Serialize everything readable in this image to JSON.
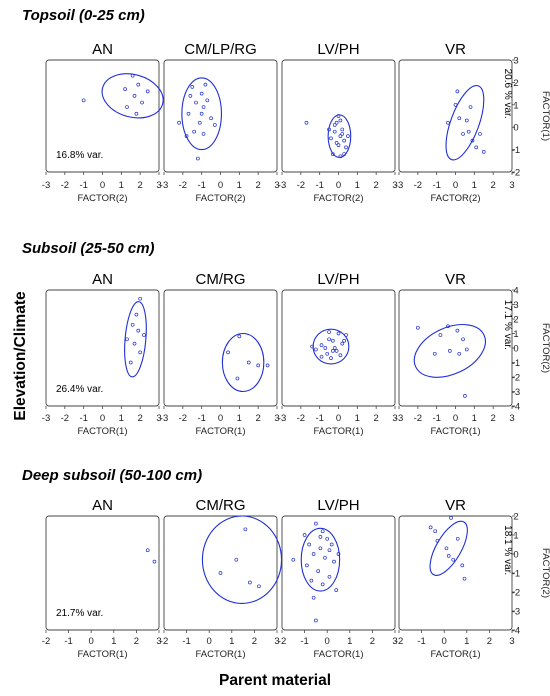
{
  "figure": {
    "y_axis_title": "Elevation/Climate",
    "x_axis_title": "Parent material"
  },
  "chart_data": [
    {
      "type": "scatter",
      "title": "Topsoil (0-25 cm)",
      "xlabel": "FACTOR(2)",
      "ylabel": "FACTOR(1)",
      "xlim": [
        -3,
        3
      ],
      "ylim": [
        -2,
        3
      ],
      "xticks": [
        -3,
        -2,
        -1,
        0,
        1,
        2,
        3
      ],
      "yticks": [
        -2,
        -1,
        0,
        1,
        2,
        3
      ],
      "explained_variance_x": "16.8% var.",
      "explained_variance_y": "20.6 % var.",
      "panels": [
        {
          "label": "AN",
          "points": [
            [
              -1.0,
              1.2
            ],
            [
              1.2,
              1.7
            ],
            [
              1.6,
              2.3
            ],
            [
              1.9,
              1.9
            ],
            [
              2.1,
              1.1
            ],
            [
              1.8,
              0.6
            ],
            [
              2.4,
              1.6
            ],
            [
              1.3,
              0.9
            ],
            [
              1.7,
              1.4
            ]
          ],
          "ellipse": {
            "cx": 1.6,
            "cy": 1.4,
            "rx": 1.65,
            "ry": 0.95,
            "angle_deg": 15
          }
        },
        {
          "label": "CM/LP/RG",
          "points": [
            [
              -1.5,
              1.8
            ],
            [
              -1.0,
              1.5
            ],
            [
              -0.8,
              1.9
            ],
            [
              -1.3,
              1.1
            ],
            [
              -0.9,
              0.9
            ],
            [
              -1.7,
              0.6
            ],
            [
              -1.1,
              0.2
            ],
            [
              -0.5,
              0.4
            ],
            [
              -1.4,
              -0.2
            ],
            [
              -0.9,
              -0.3
            ],
            [
              -2.2,
              0.2
            ],
            [
              -1.2,
              -1.4
            ],
            [
              -0.7,
              1.2
            ],
            [
              -1.6,
              1.4
            ],
            [
              -1.0,
              0.6
            ],
            [
              -0.3,
              0.1
            ],
            [
              -1.8,
              -0.4
            ]
          ],
          "ellipse": {
            "cx": -1.0,
            "cy": 0.6,
            "rx": 1.05,
            "ry": 1.6,
            "angle_deg": 0
          }
        },
        {
          "label": "LV/PH",
          "points": [
            [
              0.0,
              0.5
            ],
            [
              -0.2,
              -0.2
            ],
            [
              0.1,
              -0.4
            ],
            [
              0.2,
              -0.1
            ],
            [
              -0.1,
              -0.7
            ],
            [
              0.3,
              -0.6
            ],
            [
              -0.3,
              -1.2
            ],
            [
              0.1,
              -1.3
            ],
            [
              0.4,
              -0.9
            ],
            [
              -0.2,
              0.1
            ],
            [
              0.0,
              -0.8
            ],
            [
              0.2,
              -0.3
            ],
            [
              -0.1,
              0.2
            ],
            [
              0.3,
              -1.2
            ],
            [
              -0.4,
              -0.5
            ],
            [
              0.1,
              0.3
            ],
            [
              0.5,
              -0.4
            ],
            [
              -1.7,
              0.2
            ],
            [
              -0.5,
              -0.1
            ]
          ],
          "ellipse": {
            "cx": 0.05,
            "cy": -0.4,
            "rx": 0.6,
            "ry": 0.95,
            "angle_deg": 0
          }
        },
        {
          "label": "VR",
          "points": [
            [
              0.1,
              1.6
            ],
            [
              0.0,
              1.0
            ],
            [
              0.2,
              0.4
            ],
            [
              0.6,
              0.3
            ],
            [
              0.4,
              -0.3
            ],
            [
              0.9,
              -0.6
            ],
            [
              1.1,
              -0.9
            ],
            [
              1.3,
              -0.3
            ],
            [
              0.8,
              0.9
            ],
            [
              1.5,
              -1.1
            ],
            [
              -0.4,
              0.2
            ],
            [
              0.7,
              -0.2
            ]
          ],
          "ellipse": {
            "cx": 0.5,
            "cy": 0.2,
            "rx": 0.75,
            "ry": 1.75,
            "angle_deg": 20
          }
        }
      ]
    },
    {
      "type": "scatter",
      "title": "Subsoil (25-50 cm)",
      "xlabel": "FACTOR(1)",
      "ylabel": "FACTOR(2)",
      "xlim": [
        -3,
        3
      ],
      "ylim": [
        -4,
        4
      ],
      "xticks": [
        -3,
        -2,
        -1,
        0,
        1,
        2,
        3
      ],
      "yticks": [
        -4,
        -3,
        -2,
        -1,
        0,
        1,
        2,
        3,
        4
      ],
      "explained_variance_x": "26.4% var.",
      "explained_variance_y": "17.1 % var.",
      "panels": [
        {
          "label": "AN",
          "points": [
            [
              2.0,
              3.4
            ],
            [
              1.8,
              2.3
            ],
            [
              1.6,
              1.6
            ],
            [
              1.9,
              1.2
            ],
            [
              1.3,
              0.6
            ],
            [
              1.7,
              0.3
            ],
            [
              2.0,
              -0.3
            ],
            [
              1.5,
              -1.0
            ],
            [
              2.2,
              0.9
            ]
          ],
          "ellipse": {
            "cx": 1.75,
            "cy": 0.6,
            "rx": 0.55,
            "ry": 2.6,
            "angle_deg": 5
          }
        },
        {
          "label": "CM/RG",
          "points": [
            [
              0.4,
              -0.3
            ],
            [
              1.0,
              0.8
            ],
            [
              1.5,
              -1.0
            ],
            [
              2.0,
              -1.2
            ],
            [
              2.5,
              -1.2
            ],
            [
              0.9,
              -2.1
            ]
          ],
          "ellipse": {
            "cx": 1.2,
            "cy": -1.0,
            "rx": 1.1,
            "ry": 2.0,
            "angle_deg": 0
          }
        },
        {
          "label": "LV/PH",
          "points": [
            [
              -0.9,
              0.2
            ],
            [
              -0.5,
              0.6
            ],
            [
              -0.3,
              0.5
            ],
            [
              -0.1,
              -0.2
            ],
            [
              -0.6,
              -0.4
            ],
            [
              -0.2,
              0.0
            ],
            [
              0.2,
              0.3
            ],
            [
              -1.2,
              -0.1
            ],
            [
              -0.7,
              0.0
            ],
            [
              -0.4,
              -0.7
            ],
            [
              0.1,
              -0.5
            ],
            [
              0.4,
              0.9
            ],
            [
              -0.5,
              1.1
            ],
            [
              -0.9,
              -0.6
            ],
            [
              -1.4,
              0.1
            ],
            [
              0.0,
              1.0
            ],
            [
              0.3,
              0.5
            ],
            [
              -0.3,
              -0.2
            ]
          ],
          "ellipse": {
            "cx": -0.4,
            "cy": 0.1,
            "rx": 0.95,
            "ry": 1.2,
            "angle_deg": 0
          }
        },
        {
          "label": "VR",
          "points": [
            [
              -2.0,
              1.4
            ],
            [
              -0.8,
              0.9
            ],
            [
              -0.4,
              1.5
            ],
            [
              0.1,
              1.2
            ],
            [
              0.4,
              0.6
            ],
            [
              -0.3,
              -0.2
            ],
            [
              0.6,
              -0.1
            ],
            [
              -1.1,
              -0.4
            ],
            [
              0.2,
              -0.4
            ],
            [
              0.5,
              -3.3
            ]
          ],
          "ellipse": {
            "cx": -0.3,
            "cy": -0.2,
            "rx": 2.0,
            "ry": 1.6,
            "angle_deg": -25
          }
        }
      ]
    },
    {
      "type": "scatter",
      "title": "Deep subsoil (50-100 cm)",
      "xlabel": "FACTOR(1)",
      "ylabel": "FACTOR(2)",
      "xlim": [
        -2,
        3
      ],
      "ylim": [
        -4,
        2
      ],
      "xticks": [
        -2,
        -1,
        0,
        1,
        2,
        3
      ],
      "yticks": [
        -4,
        -3,
        -2,
        -1,
        0,
        1,
        2
      ],
      "explained_variance_x": "21.7% var.",
      "explained_variance_y": "18.1 % var.",
      "panels": [
        {
          "label": "AN",
          "points": [
            [
              2.5,
              0.2
            ],
            [
              2.8,
              -0.4
            ]
          ],
          "ellipse": null
        },
        {
          "label": "CM/RG",
          "points": [
            [
              1.6,
              1.3
            ],
            [
              1.2,
              -0.3
            ],
            [
              0.5,
              -1.0
            ],
            [
              1.8,
              -1.5
            ],
            [
              2.2,
              -1.7
            ]
          ],
          "ellipse": {
            "cx": 1.45,
            "cy": -0.3,
            "rx": 1.75,
            "ry": 2.3,
            "angle_deg": 0
          }
        },
        {
          "label": "LV/PH",
          "points": [
            [
              -0.5,
              1.6
            ],
            [
              -0.2,
              1.2
            ],
            [
              0.0,
              0.8
            ],
            [
              -0.8,
              0.5
            ],
            [
              -0.3,
              0.3
            ],
            [
              0.2,
              0.5
            ],
            [
              -0.6,
              0.0
            ],
            [
              -0.1,
              -0.2
            ],
            [
              0.3,
              -0.4
            ],
            [
              -0.9,
              -0.6
            ],
            [
              -0.4,
              -0.9
            ],
            [
              0.1,
              -1.2
            ],
            [
              -0.2,
              -1.6
            ],
            [
              0.4,
              -1.9
            ],
            [
              -1.5,
              -0.3
            ],
            [
              -0.6,
              -2.3
            ],
            [
              -0.5,
              -3.5
            ],
            [
              0.1,
              0.2
            ],
            [
              -0.3,
              0.9
            ],
            [
              -1.0,
              1.0
            ],
            [
              0.5,
              0.0
            ],
            [
              -0.7,
              -1.4
            ]
          ],
          "ellipse": {
            "cx": -0.3,
            "cy": -0.3,
            "rx": 0.85,
            "ry": 1.65,
            "angle_deg": 0
          }
        },
        {
          "label": "VR",
          "points": [
            [
              -0.6,
              1.4
            ],
            [
              0.3,
              1.9
            ],
            [
              -0.3,
              0.7
            ],
            [
              0.1,
              0.3
            ],
            [
              0.4,
              -0.3
            ],
            [
              0.8,
              -0.6
            ],
            [
              0.9,
              -1.3
            ],
            [
              -0.4,
              1.2
            ],
            [
              0.6,
              0.8
            ],
            [
              0.2,
              -0.1
            ]
          ],
          "ellipse": {
            "cx": 0.2,
            "cy": 0.3,
            "rx": 0.55,
            "ry": 1.6,
            "angle_deg": 30
          }
        }
      ]
    }
  ]
}
